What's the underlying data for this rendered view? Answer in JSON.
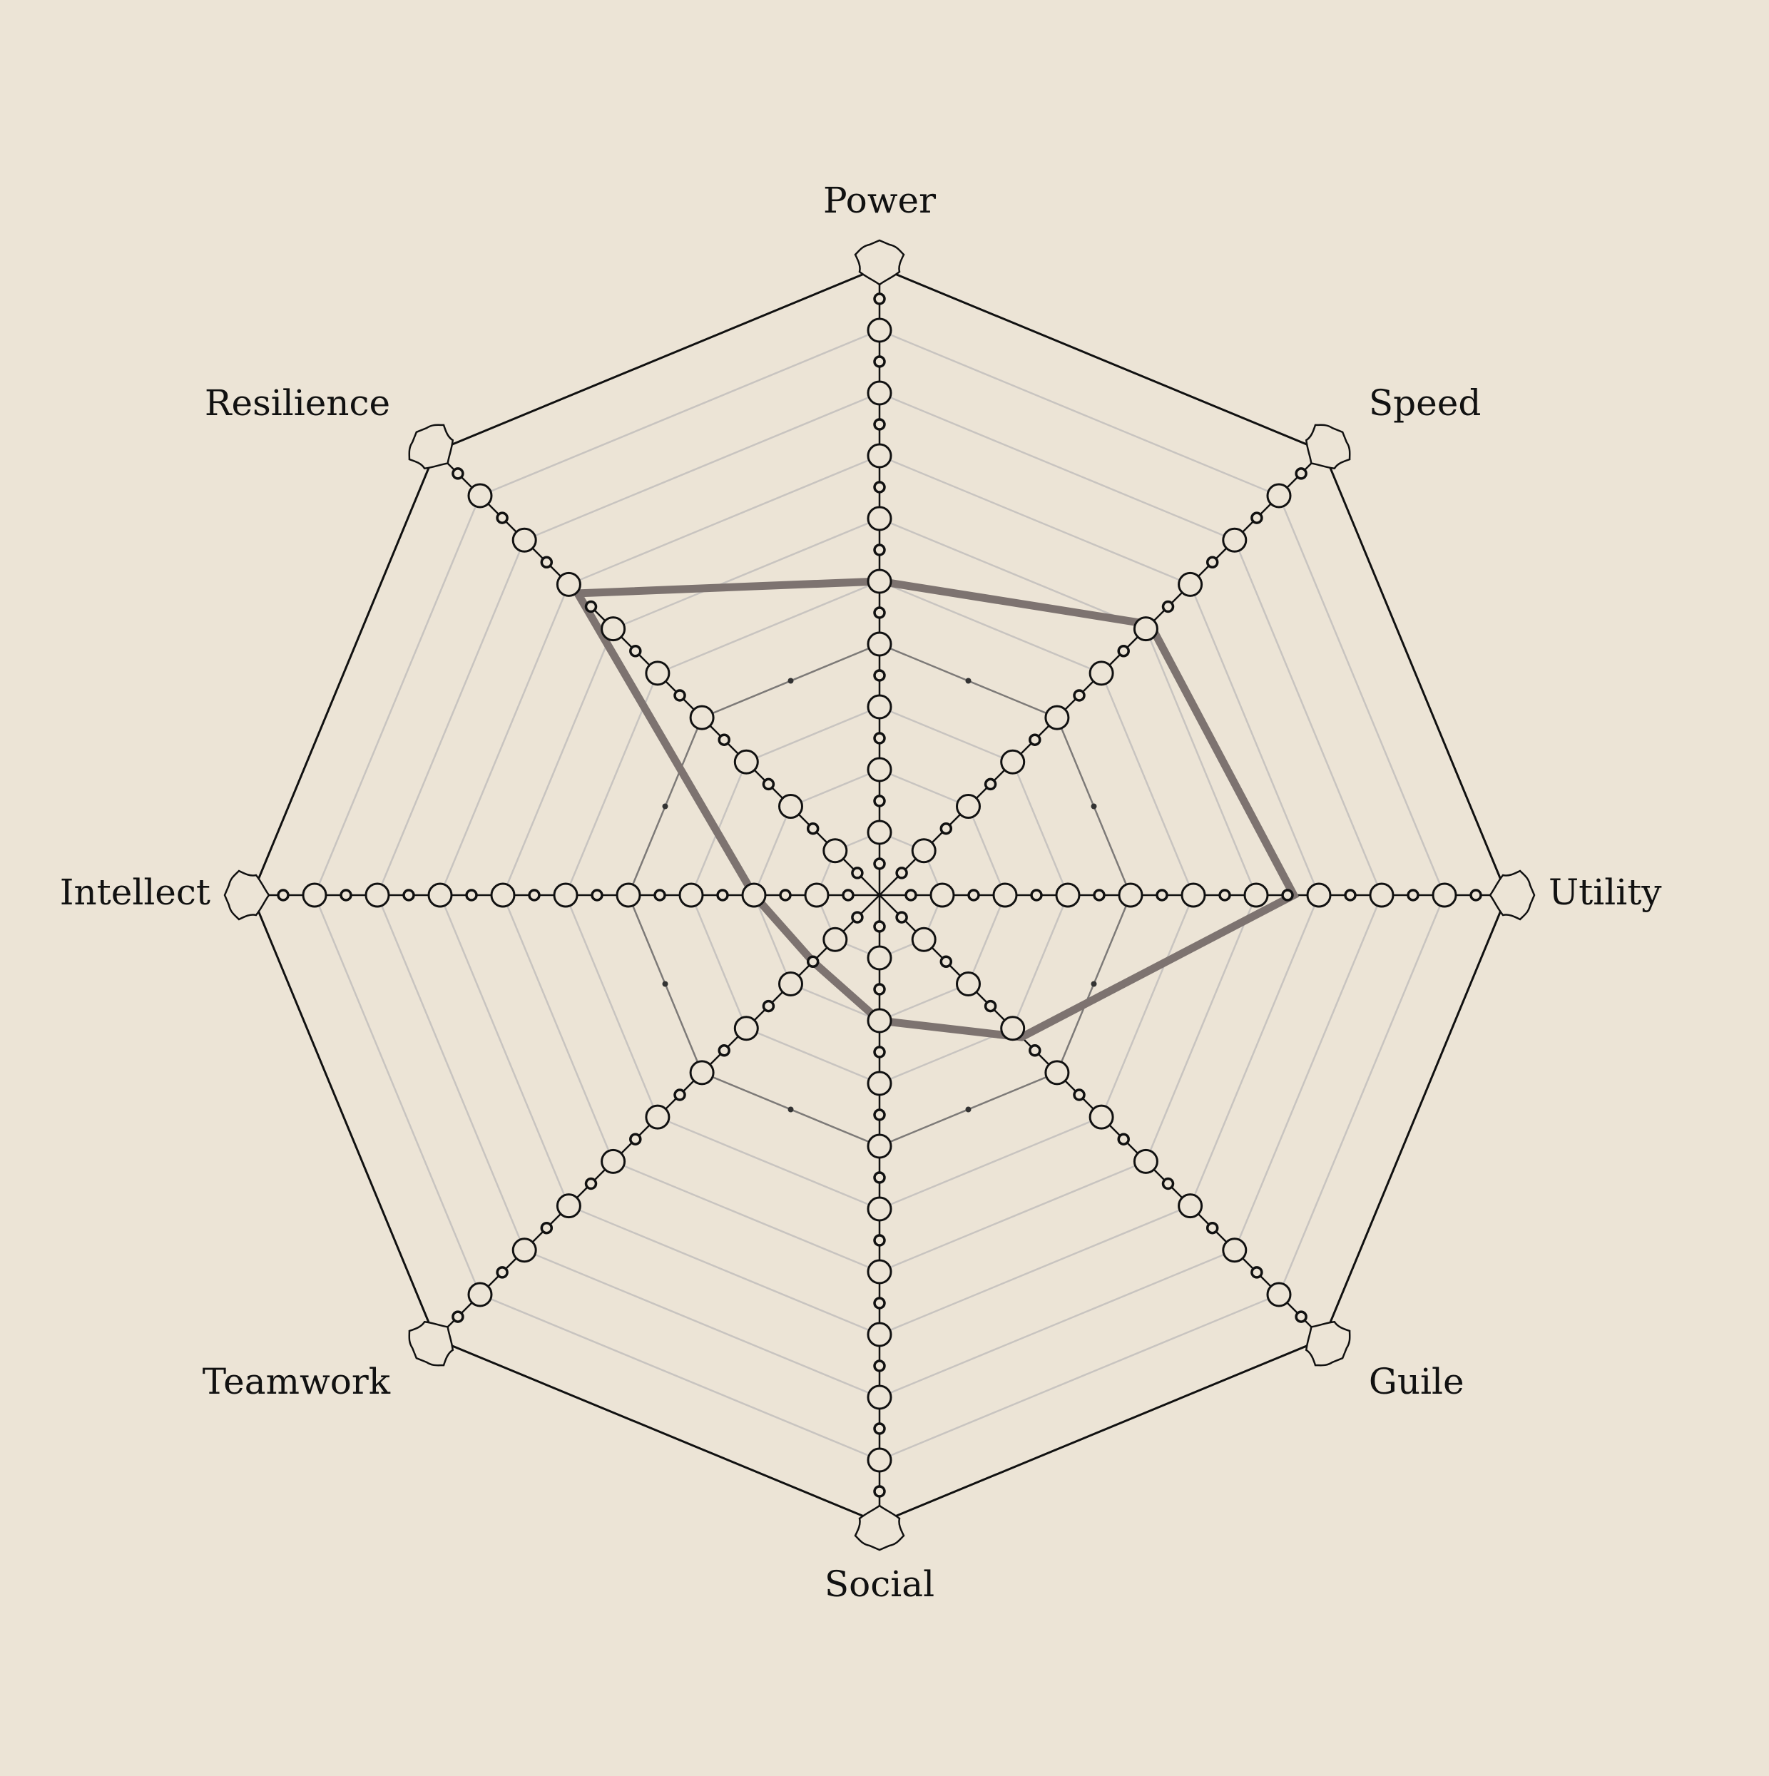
{
  "chart_data": {
    "type": "radar",
    "axes": [
      "Power",
      "Speed",
      "Utility",
      "Guile",
      "Social",
      "Teamwork",
      "Intellect",
      "Resilience"
    ],
    "scale": [
      0,
      10
    ],
    "rings": [
      1,
      2,
      3,
      4,
      5,
      6,
      7,
      8,
      9,
      10
    ],
    "grid": true,
    "reference_level": 4,
    "series": [
      {
        "values": [
          5.0,
          6.1,
          6.6,
          3.2,
          2.0,
          1.5,
          2.0,
          6.8
        ],
        "color": "#7d7370"
      }
    ]
  },
  "colors": {
    "background": "#ece4d6",
    "outer_frame": "#111111",
    "grid": "#c8c4c0",
    "reference_ring": "#7d7a78",
    "series_line": "#7d7370",
    "marker_fill": "#ece4d6"
  },
  "icons": {
    "axis_end": "shield-icon"
  }
}
